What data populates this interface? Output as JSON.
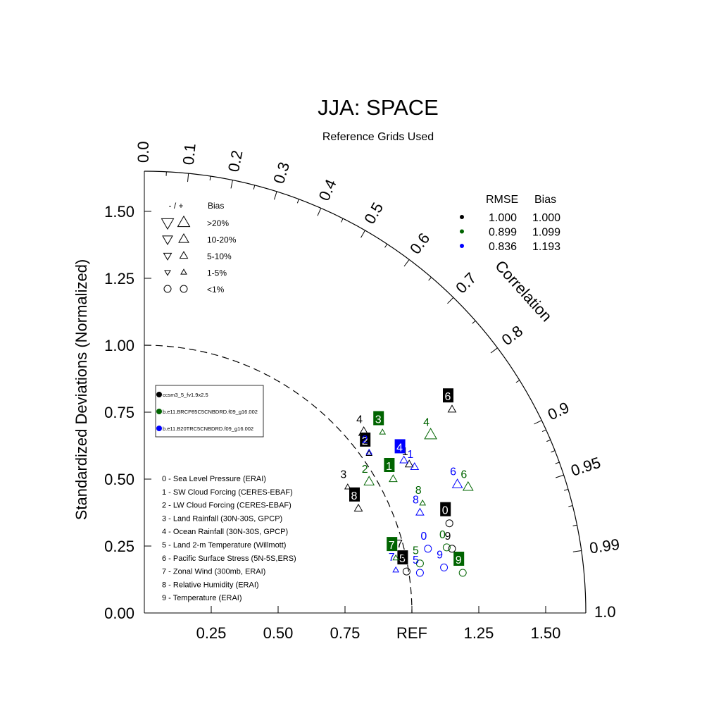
{
  "chart_data": {
    "type": "scatter",
    "subtype": "taylor-diagram",
    "title": "JJA: SPACE",
    "subtitle": "Reference Grids Used",
    "ylabel": "Standardized Deviations (Normalized)",
    "correlation_label": "Correlation",
    "ref_label": "REF",
    "ylim": [
      0,
      1.65
    ],
    "xlim": [
      0,
      1.65
    ],
    "y_ticks": [
      "0.00",
      "0.25",
      "0.50",
      "0.75",
      "1.00",
      "1.25",
      "1.50"
    ],
    "y_tick_values": [
      0,
      0.25,
      0.5,
      0.75,
      1.0,
      1.25,
      1.5
    ],
    "x_ticks": [
      "0.25",
      "0.50",
      "0.75",
      "REF",
      "1.25",
      "1.50"
    ],
    "x_tick_values": [
      0.25,
      0.5,
      0.75,
      1.0,
      1.25,
      1.5
    ],
    "correlation_ticks": [
      "0.0",
      "0.1",
      "0.2",
      "0.3",
      "0.4",
      "0.5",
      "0.6",
      "0.7",
      "0.8",
      "0.9",
      "0.95",
      "0.99",
      "1.0"
    ],
    "correlation_tick_values": [
      0.0,
      0.1,
      0.2,
      0.3,
      0.4,
      0.5,
      0.6,
      0.7,
      0.8,
      0.9,
      0.95,
      0.99,
      1.0
    ],
    "bias_legend": {
      "header_symbols": "- / +",
      "header_label": "Bias",
      "rows": [
        {
          "label": ">20%",
          "shape": "triangle",
          "size": 4
        },
        {
          "label": "10-20%",
          "shape": "triangle",
          "size": 3
        },
        {
          "label": "5-10%",
          "shape": "triangle",
          "size": 2
        },
        {
          "label": "1-5%",
          "shape": "triangle",
          "size": 1
        },
        {
          "label": "<1%",
          "shape": "circle",
          "size": 2
        }
      ]
    },
    "stats_legend": {
      "headers": [
        "RMSE",
        "Bias"
      ],
      "rows": [
        {
          "color": "#000000",
          "rmse": "1.000",
          "bias": "1.000"
        },
        {
          "color": "#006400",
          "rmse": "0.899",
          "bias": "1.099"
        },
        {
          "color": "#0000ff",
          "rmse": "0.836",
          "bias": "1.193"
        }
      ]
    },
    "series": [
      {
        "name": "ccsm3_5_fv1.9x2.5",
        "color": "#000000",
        "points": [
          {
            "id": "0",
            "x": 1.14,
            "y": 0.335,
            "marker": "circle",
            "size": 2,
            "boxed": true
          },
          {
            "id": "1",
            "x": 0.99,
            "y": 0.555,
            "marker": "triangle-up",
            "size": 2,
            "boxed": false
          },
          {
            "id": "2",
            "x": 0.84,
            "y": 0.595,
            "marker": "triangle-up",
            "size": 1,
            "boxed": true
          },
          {
            "id": "3",
            "x": 0.76,
            "y": 0.47,
            "marker": "triangle-up",
            "size": 1,
            "boxed": false
          },
          {
            "id": "4",
            "x": 0.82,
            "y": 0.675,
            "marker": "triangle-up",
            "size": 3,
            "boxed": false
          },
          {
            "id": "5",
            "x": 0.98,
            "y": 0.155,
            "marker": "circle",
            "size": 2,
            "boxed": true
          },
          {
            "id": "6",
            "x": 1.15,
            "y": 0.76,
            "marker": "triangle-up",
            "size": 2,
            "boxed": true
          },
          {
            "id": "7",
            "x": 0.97,
            "y": 0.21,
            "marker": "triangle-up",
            "size": 1,
            "boxed": false
          },
          {
            "id": "8",
            "x": 0.8,
            "y": 0.39,
            "marker": "triangle-up",
            "size": 2,
            "boxed": true
          },
          {
            "id": "9",
            "x": 1.15,
            "y": 0.24,
            "marker": "circle",
            "size": 2,
            "boxed": false
          }
        ]
      },
      {
        "name": "b.e11.BRCP85C5CNBDRD.f09_g16.002",
        "color": "#006400",
        "points": [
          {
            "id": "0",
            "x": 1.13,
            "y": 0.245,
            "marker": "circle",
            "size": 2,
            "boxed": false
          },
          {
            "id": "1",
            "x": 0.93,
            "y": 0.5,
            "marker": "triangle-up",
            "size": 2,
            "boxed": true
          },
          {
            "id": "2",
            "x": 0.84,
            "y": 0.49,
            "marker": "triangle-up",
            "size": 3,
            "boxed": false
          },
          {
            "id": "3",
            "x": 0.89,
            "y": 0.675,
            "marker": "triangle-up",
            "size": 1,
            "boxed": true
          },
          {
            "id": "4",
            "x": 1.07,
            "y": 0.665,
            "marker": "triangle-up",
            "size": 4,
            "boxed": false
          },
          {
            "id": "5",
            "x": 1.03,
            "y": 0.185,
            "marker": "circle",
            "size": 2,
            "boxed": false
          },
          {
            "id": "6",
            "x": 1.21,
            "y": 0.47,
            "marker": "triangle-up",
            "size": 3,
            "boxed": false
          },
          {
            "id": "7",
            "x": 0.94,
            "y": 0.205,
            "marker": "triangle-up",
            "size": 1,
            "boxed": true
          },
          {
            "id": "8",
            "x": 1.04,
            "y": 0.41,
            "marker": "triangle-up",
            "size": 1,
            "boxed": false
          },
          {
            "id": "9",
            "x": 1.19,
            "y": 0.15,
            "marker": "circle",
            "size": 2,
            "boxed": true
          }
        ]
      },
      {
        "name": "b.e11.B20TRC5CNBDRD.f09_g16.002",
        "color": "#0000ff",
        "points": [
          {
            "id": "0",
            "x": 1.06,
            "y": 0.24,
            "marker": "circle",
            "size": 2,
            "boxed": false
          },
          {
            "id": "1",
            "x": 1.01,
            "y": 0.545,
            "marker": "triangle-up",
            "size": 2,
            "boxed": false
          },
          {
            "id": "2",
            "x": 0.84,
            "y": 0.6,
            "marker": "triangle-up",
            "size": 1,
            "boxed": false
          },
          {
            "id": "4",
            "x": 0.97,
            "y": 0.57,
            "marker": "triangle-up",
            "size": 2,
            "boxed": true
          },
          {
            "id": "5",
            "x": 1.03,
            "y": 0.15,
            "marker": "circle",
            "size": 2,
            "boxed": false
          },
          {
            "id": "6",
            "x": 1.17,
            "y": 0.48,
            "marker": "triangle-up",
            "size": 3,
            "boxed": false
          },
          {
            "id": "7",
            "x": 0.94,
            "y": 0.16,
            "marker": "triangle-up",
            "size": 1,
            "boxed": false
          },
          {
            "id": "8",
            "x": 1.03,
            "y": 0.375,
            "marker": "triangle-up",
            "size": 2,
            "boxed": false
          },
          {
            "id": "9",
            "x": 1.12,
            "y": 0.17,
            "marker": "circle",
            "size": 2,
            "boxed": false
          }
        ]
      }
    ],
    "variable_legend": [
      "0 - Sea Level Pressure (ERAI)",
      "1 - SW Cloud Forcing (CERES-EBAF)",
      "2 - LW Cloud Forcing (CERES-EBAF)",
      "3 - Land Rainfall (30N-30S, GPCP)",
      "4 - Ocean Rainfall (30N-30S, GPCP)",
      "5 - Land 2-m Temperature (Willmott)",
      "6 - Pacific Surface Stress (5N-5S,ERS)",
      "7 - Zonal Wind (300mb, ERAI)",
      "8 - Relative Humidity (ERAI)",
      "9 - Temperature (ERAI)"
    ]
  }
}
